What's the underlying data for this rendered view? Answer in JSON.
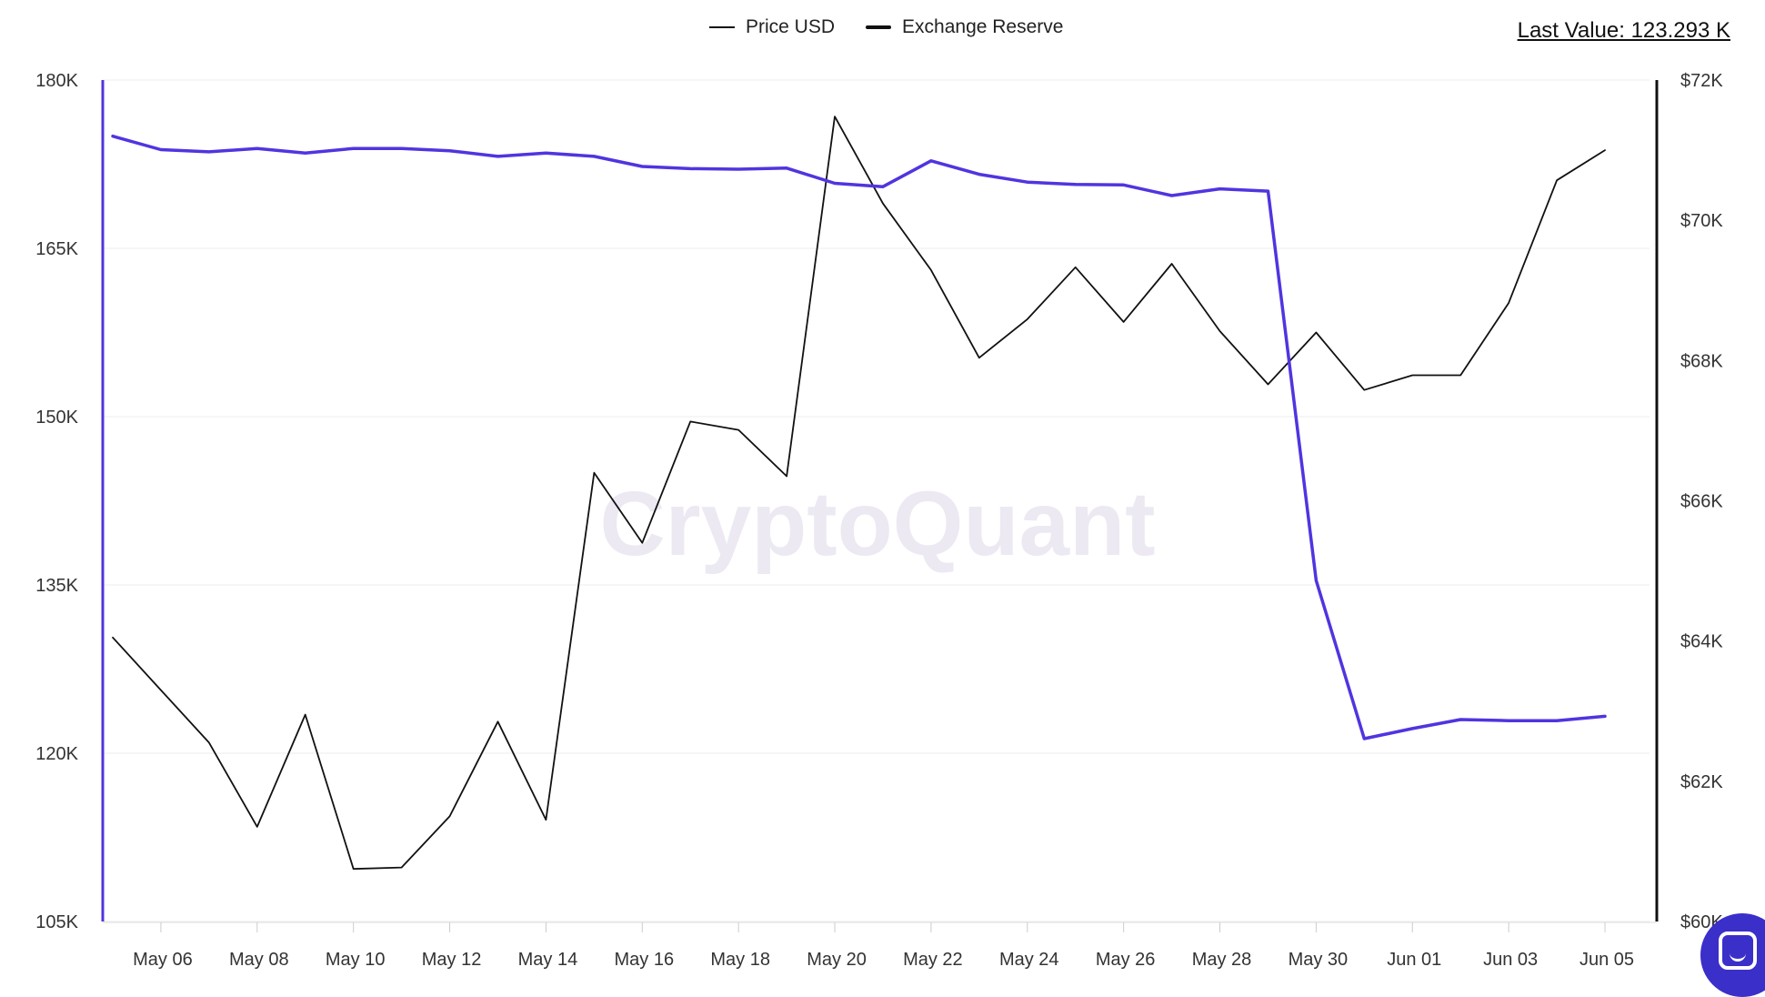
{
  "header": {
    "last_value": "Last Value: 123.293 K"
  },
  "colors": {
    "price": "#111111",
    "reserve": "#4f35e0",
    "grid": "#eeeeee",
    "axis_text": "#333333",
    "watermark": "#ece9f3"
  },
  "watermark": "CryptoQuant",
  "chat_widget": {
    "icon": "chat-bubble-icon"
  },
  "chart_data": {
    "type": "line",
    "legend_position": "top-center",
    "grid": true,
    "x": [
      "May 05",
      "May 06",
      "May 07",
      "May 08",
      "May 09",
      "May 10",
      "May 11",
      "May 12",
      "May 13",
      "May 14",
      "May 15",
      "May 16",
      "May 17",
      "May 18",
      "May 19",
      "May 20",
      "May 21",
      "May 22",
      "May 23",
      "May 24",
      "May 25",
      "May 26",
      "May 27",
      "May 28",
      "May 29",
      "May 30",
      "May 31",
      "Jun 01",
      "Jun 02",
      "Jun 03",
      "Jun 04",
      "Jun 05"
    ],
    "x_ticks": [
      "May 06",
      "May 08",
      "May 10",
      "May 12",
      "May 14",
      "May 16",
      "May 18",
      "May 20",
      "May 22",
      "May 24",
      "May 26",
      "May 28",
      "May 30",
      "Jun 01",
      "Jun 03",
      "Jun 05"
    ],
    "y_left": {
      "ticks": [
        "180K",
        "165K",
        "150K",
        "135K",
        "120K",
        "105K"
      ],
      "range": [
        105000,
        180000
      ]
    },
    "y_right": {
      "ticks": [
        "$72K",
        "$70K",
        "$68K",
        "$66K",
        "$64K",
        "$62K",
        "$60K"
      ],
      "range": [
        60000,
        72000
      ]
    },
    "series": [
      {
        "name": "Price USD",
        "axis": "right",
        "values": [
          64050,
          63300,
          62550,
          61350,
          62950,
          60750,
          60770,
          61500,
          62850,
          61450,
          66400,
          65400,
          67130,
          67010,
          66350,
          71480,
          70240,
          69290,
          68040,
          68590,
          69330,
          68550,
          69380,
          68420,
          67660,
          68400,
          67580,
          67790,
          67790,
          68820,
          70570,
          71000
        ]
      },
      {
        "name": "Exchange Reserve",
        "axis": "left",
        "values": [
          175000,
          173800,
          173600,
          173900,
          173500,
          173900,
          173900,
          173700,
          173200,
          173500,
          173200,
          172300,
          172100,
          172050,
          172150,
          170800,
          170500,
          172800,
          171600,
          170900,
          170700,
          170650,
          169700,
          170300,
          170100,
          135400,
          121300,
          122200,
          123000,
          122900,
          122900,
          123293
        ]
      }
    ]
  }
}
